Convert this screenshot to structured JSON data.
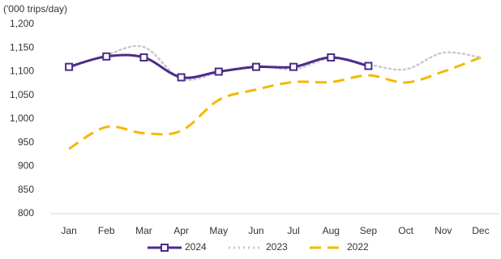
{
  "chart_data": {
    "type": "line",
    "y_label": "('000 trips/day)",
    "categories": [
      "Jan",
      "Feb",
      "Mar",
      "Apr",
      "May",
      "Jun",
      "Jul",
      "Aug",
      "Sep",
      "Oct",
      "Nov",
      "Dec"
    ],
    "series": [
      {
        "name": "2024",
        "color": "#4b2c8a",
        "style": "solid",
        "marker": "square",
        "values": [
          1110,
          1132,
          1130,
          1088,
          1100,
          1110,
          1110,
          1130,
          1112,
          null,
          null,
          null
        ]
      },
      {
        "name": "2023",
        "color": "#c8c8d2",
        "style": "dotted",
        "values": [
          1108,
          1135,
          1152,
          1085,
          1098,
          1112,
          1105,
          1128,
          1115,
          1105,
          1140,
          1130
        ]
      },
      {
        "name": "2022",
        "color": "#f5b800",
        "style": "dashed",
        "values": [
          937,
          983,
          970,
          975,
          1040,
          1062,
          1078,
          1078,
          1092,
          1077,
          1100,
          1130
        ]
      }
    ],
    "ylim": [
      800,
      1200
    ],
    "yticks": [
      800,
      850,
      900,
      950,
      {
        "value": 1000,
        "label": "1,000"
      },
      {
        "value": 1050,
        "label": "1,050"
      },
      {
        "value": 1100,
        "label": "1,100"
      },
      {
        "value": 1150,
        "label": "1,150"
      },
      {
        "value": 1200,
        "label": "1,200"
      }
    ],
    "grid": false,
    "legend": "bottom"
  }
}
